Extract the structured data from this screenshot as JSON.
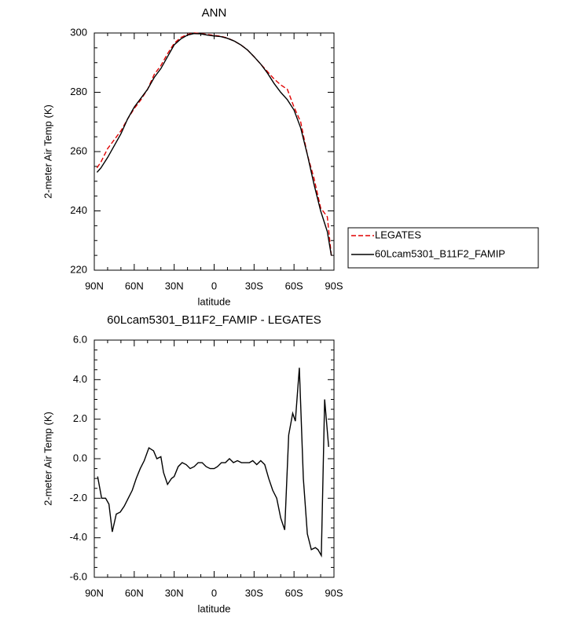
{
  "chart_data": [
    {
      "type": "line",
      "title": "ANN",
      "xlabel": "latitude",
      "ylabel": "2-meter Air Temp (K)",
      "x": [
        88,
        85,
        80,
        75,
        70,
        65,
        60,
        55,
        50,
        45,
        40,
        35,
        30,
        25,
        20,
        15,
        10,
        5,
        0,
        -5,
        -10,
        -15,
        -20,
        -25,
        -30,
        -35,
        -40,
        -45,
        -50,
        -55,
        -60,
        -65,
        -70,
        -75,
        -80,
        -85,
        -88
      ],
      "series": [
        {
          "name": "LEGATES",
          "color": "#e00000",
          "style": "dashed",
          "values": [
            254.5,
            256.5,
            261,
            264,
            267,
            271,
            274.5,
            277.5,
            281,
            286,
            289,
            293,
            296.5,
            298.5,
            299.5,
            300,
            299.8,
            299.5,
            299.2,
            298.9,
            298.3,
            297.3,
            296,
            294.3,
            292,
            289.5,
            287,
            284.5,
            282.5,
            281,
            275,
            270,
            259,
            251,
            241,
            238,
            225
          ]
        },
        {
          "name": "60Lcam5301_B11F2_FAMIP",
          "color": "#000000",
          "style": "solid",
          "values": [
            253,
            254.5,
            258,
            262,
            266,
            271,
            275,
            278,
            281,
            285,
            288,
            292,
            296,
            298,
            299.3,
            299.8,
            299.7,
            299.3,
            299,
            298.8,
            298.2,
            297.3,
            296,
            294.3,
            292,
            289.5,
            286.5,
            283,
            280,
            277.5,
            274,
            268,
            259,
            249,
            240,
            233,
            225
          ]
        }
      ],
      "xlim": [
        90,
        -90
      ],
      "xticks": [
        {
          "value": 90,
          "label": "90N"
        },
        {
          "value": 60,
          "label": "60N"
        },
        {
          "value": 30,
          "label": "30N"
        },
        0,
        {
          "value": -30,
          "label": "30S"
        },
        {
          "value": -60,
          "label": "60S"
        },
        {
          "value": -90,
          "label": "90S"
        }
      ],
      "ylim": [
        220,
        300
      ],
      "yticks": [
        220,
        240,
        260,
        280,
        300
      ],
      "legend": "right"
    },
    {
      "type": "line",
      "title": "60Lcam5301_B11F2_FAMIP - LEGATES",
      "xlabel": "latitude",
      "ylabel": "2-meter Air Temp (K)",
      "x": [
        87.5,
        84.5,
        81.5,
        79,
        76.5,
        73.5,
        70.5,
        67.5,
        64.5,
        61.5,
        58.5,
        55.5,
        52.5,
        49,
        45.5,
        43,
        40,
        38,
        35,
        32,
        30,
        27,
        24,
        21,
        18,
        15,
        12,
        9,
        6,
        3,
        0,
        -2.5,
        -5.5,
        -8.5,
        -11.5,
        -14.5,
        -17.5,
        -20.5,
        -24,
        -26.5,
        -29,
        -32,
        -35,
        -38,
        -41,
        -44,
        -47,
        -50,
        -53,
        -56,
        -59,
        -61,
        -64,
        -67,
        -70,
        -73,
        -76,
        -78,
        -80.5,
        -83,
        -86
      ],
      "color": "#000000",
      "values": [
        -0.9,
        -2.0,
        -2.0,
        -2.3,
        -3.7,
        -2.8,
        -2.7,
        -2.4,
        -2.0,
        -1.6,
        -1.0,
        -0.5,
        -0.1,
        0.55,
        0.4,
        0.0,
        0.1,
        -0.7,
        -1.3,
        -1.0,
        -0.9,
        -0.4,
        -0.2,
        -0.3,
        -0.5,
        -0.4,
        -0.2,
        -0.2,
        -0.4,
        -0.5,
        -0.5,
        -0.4,
        -0.2,
        -0.2,
        0.0,
        -0.2,
        -0.1,
        -0.2,
        -0.2,
        -0.2,
        -0.1,
        -0.3,
        -0.1,
        -0.3,
        -1.0,
        -1.6,
        -2.0,
        -3.0,
        -3.6,
        1.2,
        2.3,
        1.9,
        4.6,
        -1.0,
        -3.8,
        -4.6,
        -4.5,
        -4.6,
        -4.9,
        3.0,
        0.6
      ],
      "xlim": [
        90,
        -90
      ],
      "xticks": [
        {
          "value": 90,
          "label": "90N"
        },
        {
          "value": 60,
          "label": "60N"
        },
        {
          "value": 30,
          "label": "30N"
        },
        0,
        {
          "value": -30,
          "label": "30S"
        },
        {
          "value": -60,
          "label": "60S"
        },
        {
          "value": -90,
          "label": "90S"
        }
      ],
      "ylim": [
        -6,
        6
      ],
      "yticks": [
        {
          "value": -6,
          "label": "-6.0"
        },
        {
          "value": -4,
          "label": "-4.0"
        },
        {
          "value": -2,
          "label": "-2.0"
        },
        {
          "value": 0,
          "label": "0.0"
        },
        {
          "value": 2,
          "label": "2.0"
        },
        {
          "value": 4,
          "label": "4.0"
        },
        {
          "value": 6,
          "label": "6.0"
        }
      ]
    }
  ]
}
